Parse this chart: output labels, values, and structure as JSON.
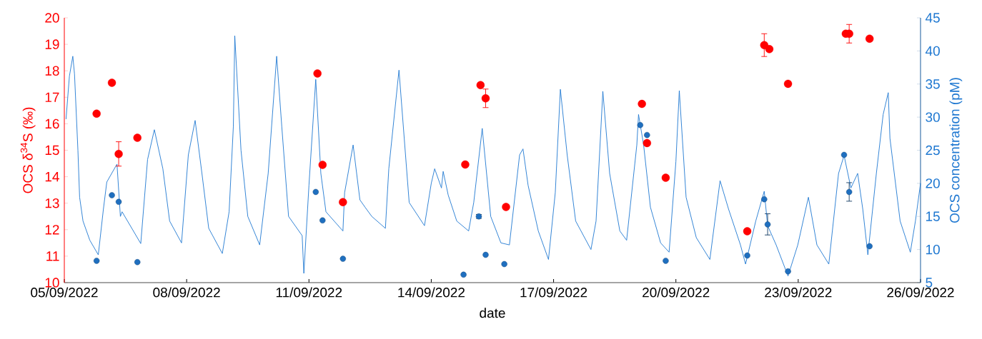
{
  "chart_data": {
    "type": "scatter",
    "xlabel": "date",
    "ylabel": "OCS δ$^{34}$S (‰)",
    "y2label": "OCS concentration (pM)",
    "xlim": [
      "2022-09-05",
      "2022-09-26"
    ],
    "xticks": [
      {
        "value": "2022-09-05",
        "label": "05/09/2022"
      },
      {
        "value": "2022-09-08",
        "label": "08/09/2022"
      },
      {
        "value": "2022-09-11",
        "label": "11/09/2022"
      },
      {
        "value": "2022-09-14",
        "label": "14/09/2022"
      },
      {
        "value": "2022-09-17",
        "label": "17/09/2022"
      },
      {
        "value": "2022-09-20",
        "label": "20/09/2022"
      },
      {
        "value": "2022-09-23",
        "label": "23/09/2022"
      },
      {
        "value": "2022-09-26",
        "label": "26/09/2022"
      }
    ],
    "ylim": [
      10,
      20
    ],
    "yticks": [
      10,
      11,
      12,
      13,
      14,
      15,
      16,
      17,
      18,
      19,
      20
    ],
    "y2lim": [
      5,
      45
    ],
    "y2ticks": [
      5,
      10,
      15,
      20,
      25,
      30,
      35,
      40,
      45
    ],
    "series": [
      {
        "type": "line",
        "axis": "y2",
        "color": "#1f78d1",
        "marker": "none",
        "x": [
          "2022-09-05T01:00",
          "2022-09-05T03:00",
          "2022-09-05T05:00",
          "2022-09-05T06:00",
          "2022-09-05T08:00",
          "2022-09-05T09:00",
          "2022-09-05T11:00",
          "2022-09-05T15:00",
          "2022-09-05T20:00",
          "2022-09-05T23:00",
          "2022-09-06T01:00",
          "2022-09-06T07:00",
          "2022-09-06T09:00",
          "2022-09-06T10:00",
          "2022-09-06T21:00",
          "2022-09-07T01:00",
          "2022-09-07T05:00",
          "2022-09-07T10:00",
          "2022-09-07T14:00",
          "2022-09-07T21:00",
          "2022-09-08T01:00",
          "2022-09-08T05:00",
          "2022-09-08T09:00",
          "2022-09-08T13:00",
          "2022-09-08T21:00",
          "2022-09-09T01:00",
          "2022-09-09T03:30",
          "2022-09-09T04:20",
          "2022-09-09T08:00",
          "2022-09-09T12:00",
          "2022-09-09T19:00",
          "2022-09-10T00:00",
          "2022-09-10T05:00",
          "2022-09-10T08:00",
          "2022-09-10T12:00",
          "2022-09-10T20:00",
          "2022-09-10T21:00",
          "2022-09-11T00:00",
          "2022-09-11T04:00",
          "2022-09-11T07:00",
          "2022-09-11T10:00",
          "2022-09-11T20:00",
          "2022-09-11T21:00",
          "2022-09-12T02:00",
          "2022-09-12T06:00",
          "2022-09-12T09:00",
          "2022-09-12T13:00",
          "2022-09-12T21:00",
          "2022-09-12T23:00",
          "2022-09-13T05:00",
          "2022-09-13T11:00",
          "2022-09-13T20:00",
          "2022-09-14T00:00",
          "2022-09-14T02:00",
          "2022-09-14T06:00",
          "2022-09-14T07:00",
          "2022-09-14T10:00",
          "2022-09-14T15:00",
          "2022-09-14T22:00",
          "2022-09-15T01:00",
          "2022-09-15T06:00",
          "2022-09-15T11:00",
          "2022-09-15T17:00",
          "2022-09-15T22:00",
          "2022-09-16T04:00",
          "2022-09-16T06:00",
          "2022-09-16T09:00",
          "2022-09-16T15:00",
          "2022-09-16T21:00",
          "2022-09-17T01:00",
          "2022-09-17T04:00",
          "2022-09-17T08:00",
          "2022-09-17T13:00",
          "2022-09-17T22:00",
          "2022-09-18T01:00",
          "2022-09-18T05:00",
          "2022-09-18T09:00",
          "2022-09-18T15:00",
          "2022-09-18T19:00",
          "2022-09-19T01:00",
          "2022-09-19T02:00",
          "2022-09-19T05:00",
          "2022-09-19T09:00",
          "2022-09-19T15:00",
          "2022-09-19T20:00",
          "2022-09-20T00:00",
          "2022-09-20T02:00",
          "2022-09-20T06:00",
          "2022-09-20T12:00",
          "2022-09-20T20:00",
          "2022-09-21T02:00",
          "2022-09-21T07:00",
          "2022-09-21T14:00",
          "2022-09-21T17:00",
          "2022-09-21T23:00",
          "2022-09-22T04:00",
          "2022-09-22T06:00",
          "2022-09-22T11:00",
          "2022-09-22T18:00",
          "2022-09-22T23:45",
          "2022-09-23T06:00",
          "2022-09-23T11:00",
          "2022-09-23T18:00",
          "2022-09-23T23:45",
          "2022-09-24T03:00",
          "2022-09-24T07:00",
          "2022-09-24T11:00",
          "2022-09-24T14:00",
          "2022-09-24T17:00",
          "2022-09-24T22:00",
          "2022-09-25T02:00",
          "2022-09-25T05:00",
          "2022-09-25T06:00",
          "2022-09-25T12:00",
          "2022-09-25T18:00",
          "2022-09-25T21:00",
          "2022-09-26T00:00"
        ],
        "values": [
          29.7,
          36.2,
          39.2,
          36.5,
          25.0,
          17.9,
          14.3,
          11.4,
          9.2,
          16.1,
          20.2,
          22.9,
          15.0,
          15.7,
          10.9,
          23.6,
          28.1,
          22.2,
          14.3,
          11.0,
          24.3,
          29.5,
          21.5,
          13.2,
          9.4,
          15.7,
          28.6,
          42.3,
          25.0,
          15.0,
          10.7,
          21.5,
          39.2,
          28.6,
          15.0,
          12.1,
          6.4,
          19.7,
          35.7,
          21.5,
          15.7,
          12.8,
          18.6,
          25.8,
          17.5,
          16.4,
          15.0,
          13.2,
          22.2,
          37.1,
          17.1,
          13.6,
          20.0,
          22.2,
          19.3,
          21.8,
          18.2,
          14.3,
          12.8,
          17.1,
          28.3,
          15.0,
          11.0,
          10.7,
          24.3,
          25.2,
          19.7,
          12.8,
          8.5,
          18.6,
          34.2,
          24.3,
          14.3,
          10.0,
          14.3,
          33.9,
          21.5,
          12.8,
          11.4,
          25.8,
          30.4,
          25.8,
          16.4,
          11.0,
          9.6,
          23.3,
          34.0,
          17.9,
          11.8,
          8.5,
          20.4,
          16.1,
          10.7,
          7.8,
          14.3,
          18.8,
          13.6,
          10.7,
          6.0,
          10.7,
          17.9,
          10.7,
          7.8,
          21.5,
          24.2,
          19.3,
          21.5,
          16.1,
          9.2,
          21.5,
          30.4,
          33.7,
          26.8,
          14.3,
          9.6,
          14.3,
          20.0
        ]
      },
      {
        "axis": "y2",
        "color": "#1f6fbf",
        "marker": "circle",
        "x": [
          "2022-09-05T19:00",
          "2022-09-06T04:00",
          "2022-09-06T08:00",
          "2022-09-06T19:00",
          "2022-09-11T04:00",
          "2022-09-11T08:00",
          "2022-09-11T20:00",
          "2022-09-14T19:00",
          "2022-09-15T04:00",
          "2022-09-15T08:00",
          "2022-09-15T19:00",
          "2022-09-19T03:00",
          "2022-09-19T07:00",
          "2022-09-19T18:00",
          "2022-09-21T18:00",
          "2022-09-22T04:00",
          "2022-09-22T06:00",
          "2022-09-22T18:00",
          "2022-09-24T03:00",
          "2022-09-24T06:00",
          "2022-09-24T18:00"
        ],
        "values": [
          8.3,
          18.2,
          17.2,
          8.1,
          18.7,
          14.4,
          8.6,
          6.2,
          15.0,
          9.2,
          7.8,
          28.8,
          27.3,
          8.3,
          9.1,
          17.6,
          13.8,
          6.7,
          24.3,
          18.7,
          10.5
        ],
        "errors": [
          null,
          null,
          null,
          null,
          null,
          null,
          null,
          null,
          0.3,
          null,
          null,
          null,
          null,
          null,
          null,
          null,
          1.6,
          null,
          null,
          1.4,
          null
        ]
      },
      {
        "axis": "y",
        "color": "#ff0000",
        "marker": "circle",
        "x": [
          "2022-09-05T19:00",
          "2022-09-06T04:00",
          "2022-09-06T08:00",
          "2022-09-06T19:00",
          "2022-09-11T05:00",
          "2022-09-11T08:00",
          "2022-09-11T20:00",
          "2022-09-14T20:00",
          "2022-09-15T05:00",
          "2022-09-15T08:00",
          "2022-09-15T20:00",
          "2022-09-19T04:00",
          "2022-09-19T07:00",
          "2022-09-19T18:00",
          "2022-09-21T18:00",
          "2022-09-22T04:00",
          "2022-09-22T07:00",
          "2022-09-22T18:00",
          "2022-09-24T04:00",
          "2022-09-24T06:00",
          "2022-09-24T18:00"
        ],
        "values": [
          16.38,
          17.55,
          14.86,
          15.47,
          17.9,
          14.45,
          13.04,
          14.46,
          17.46,
          16.96,
          12.86,
          16.75,
          15.27,
          13.96,
          11.94,
          18.97,
          18.82,
          17.51,
          19.4,
          19.4,
          19.21
        ],
        "errors": [
          null,
          null,
          0.46,
          null,
          null,
          null,
          null,
          null,
          null,
          0.35,
          null,
          null,
          null,
          null,
          null,
          0.43,
          null,
          null,
          null,
          0.35,
          null
        ]
      }
    ]
  }
}
